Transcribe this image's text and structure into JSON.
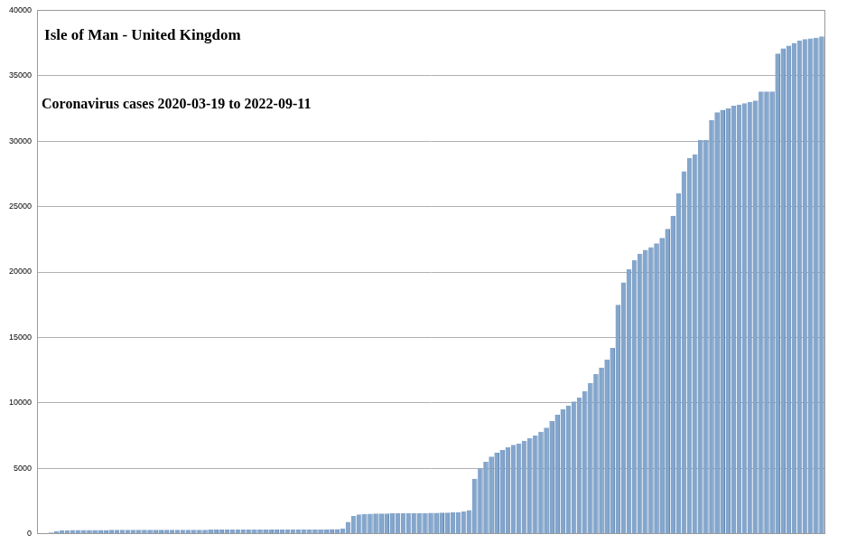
{
  "chart_data": {
    "type": "bar",
    "title": "Isle of Man - United Kingdom",
    "subtitle": "Coronavirus cases 2020-03-19 to 2022-09-11",
    "categories": [
      null,
      null,
      null,
      null,
      null,
      null,
      null,
      null,
      null,
      null,
      null,
      null,
      null,
      null,
      null,
      null,
      null,
      null,
      null,
      null,
      null,
      null,
      null,
      null,
      null,
      null,
      null,
      null,
      null,
      null,
      null,
      null,
      null,
      null,
      null,
      null,
      null,
      null,
      null,
      null,
      null,
      null,
      null,
      null,
      null,
      null,
      null,
      null,
      null,
      null,
      null,
      null,
      null,
      null,
      null,
      null,
      null,
      null,
      null,
      null,
      null,
      null,
      null,
      null,
      null,
      null,
      null,
      null,
      null,
      null,
      null,
      null,
      null,
      null,
      null,
      null,
      null,
      null,
      null,
      null,
      null,
      null,
      null,
      null,
      null,
      null,
      null,
      null,
      null,
      null,
      null,
      null,
      null,
      null,
      null,
      null,
      null,
      null,
      null,
      null,
      null,
      null,
      null,
      null,
      null,
      null,
      null,
      null,
      null,
      null,
      null,
      null,
      null,
      null,
      null,
      null,
      null,
      null,
      null,
      null,
      null,
      null,
      null,
      null,
      null,
      null,
      null,
      null,
      null,
      null,
      null,
      null,
      null,
      null,
      null,
      null,
      null,
      null,
      null,
      null,
      null,
      null,
      null
    ],
    "values": [
      0,
      30,
      100,
      200,
      250,
      270,
      275,
      280,
      285,
      290,
      290,
      290,
      291,
      292,
      293,
      294,
      295,
      296,
      297,
      298,
      299,
      300,
      301,
      302,
      303,
      304,
      305,
      306,
      307,
      308,
      309,
      310,
      311,
      312,
      313,
      314,
      315,
      316,
      318,
      320,
      322,
      324,
      326,
      328,
      330,
      332,
      334,
      336,
      338,
      340,
      341,
      342,
      343,
      345,
      350,
      400,
      900,
      1350,
      1480,
      1510,
      1530,
      1540,
      1545,
      1550,
      1555,
      1560,
      1565,
      1570,
      1575,
      1580,
      1585,
      1590,
      1600,
      1610,
      1620,
      1635,
      1650,
      1700,
      1800,
      4200,
      5000,
      5500,
      5900,
      6200,
      6400,
      6600,
      6800,
      6900,
      7100,
      7300,
      7500,
      7800,
      8100,
      8600,
      9100,
      9500,
      9800,
      10100,
      10400,
      10900,
      11500,
      12200,
      12700,
      13300,
      14200,
      17500,
      19200,
      20200,
      20900,
      21400,
      21700,
      21900,
      22200,
      22600,
      23300,
      24300,
      26000,
      27700,
      28700,
      29000,
      30100,
      30100,
      31600,
      32200,
      32400,
      32500,
      32700,
      32800,
      32900,
      33000,
      33100,
      33800,
      33800,
      33800,
      36700,
      37100,
      37300,
      37500,
      37700,
      37800,
      37850,
      37900,
      38000
    ],
    "color": "#84a6cc",
    "ylim": [
      0,
      40000
    ],
    "yticks": [
      0,
      5000,
      10000,
      15000,
      20000,
      25000,
      30000,
      35000,
      40000
    ],
    "grid": true,
    "tick_labels": "y"
  }
}
